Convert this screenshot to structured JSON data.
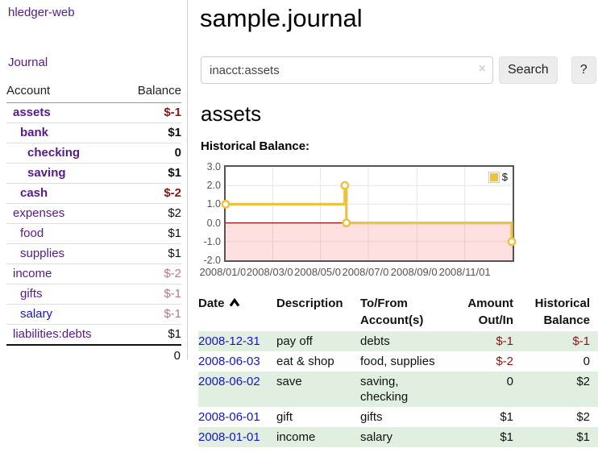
{
  "app": {
    "title": "hledger-web",
    "journal_link": "Journal"
  },
  "colors": {
    "link_purple": "#551a8b",
    "link_blue": "#1414cc",
    "negative_strong": "#8b1414",
    "negative_soft": "#b87878",
    "row_stripe_green": "#e1efe1",
    "series_gold": "#edc240"
  },
  "sidebar": {
    "headers": {
      "account": "Account",
      "balance": "Balance"
    },
    "accounts": [
      {
        "name": "assets",
        "indent": 1,
        "bold": true,
        "balance": "$-1",
        "style": "neg-strong"
      },
      {
        "name": "bank",
        "indent": 2,
        "bold": true,
        "balance": "$1",
        "style": "pos-strong"
      },
      {
        "name": "checking",
        "indent": 3,
        "bold": true,
        "balance": "0",
        "style": "pos-strong"
      },
      {
        "name": "saving",
        "indent": 3,
        "bold": true,
        "balance": "$1",
        "style": "pos-strong"
      },
      {
        "name": "cash",
        "indent": 2,
        "bold": true,
        "balance": "$-2",
        "style": "neg-strong"
      },
      {
        "name": "expenses",
        "indent": 1,
        "bold": false,
        "balance": "$2",
        "style": "pos"
      },
      {
        "name": "food",
        "indent": 2,
        "bold": false,
        "balance": "$1",
        "style": "pos"
      },
      {
        "name": "supplies",
        "indent": 2,
        "bold": false,
        "balance": "$1",
        "style": "pos"
      },
      {
        "name": "income",
        "indent": 1,
        "bold": false,
        "balance": "$-2",
        "style": "neg-soft"
      },
      {
        "name": "gifts",
        "indent": 2,
        "bold": false,
        "balance": "$-1",
        "style": "neg-soft"
      },
      {
        "name": "salary",
        "indent": 2,
        "bold": false,
        "balance": "$-1",
        "style": "neg-soft",
        "link_color": "blue"
      },
      {
        "name": "liabilities:debts",
        "indent": 1,
        "bold": false,
        "balance": "$1",
        "style": "pos"
      }
    ],
    "total": "0"
  },
  "header": {
    "title": "sample.journal"
  },
  "search": {
    "value": "inacct:assets",
    "clear_icon": "×",
    "button_label": "Search",
    "help_label": "?"
  },
  "account_page": {
    "heading": "assets",
    "chart_label": "Historical Balance:"
  },
  "chart_data": {
    "type": "line",
    "step": true,
    "title": "Historical Balance:",
    "xlabel": "",
    "ylabel": "",
    "xlim": [
      "2008-01-01",
      "2009-01-01"
    ],
    "ylim": [
      -2,
      3
    ],
    "y_tick_labels": [
      "3.0",
      "2.0",
      "1.0",
      "0.0",
      "-1.0",
      "-2.0"
    ],
    "x_tick_labels": [
      "2008/01/01",
      "2008/03/01",
      "2008/05/01",
      "2008/07/01",
      "2008/09/01",
      "2008/11/01"
    ],
    "grid": true,
    "grid_color": "#e6e6e6",
    "zero_line_color": "#9a1010",
    "negative_region_color": "rgba(255,0,0,0.12)",
    "legend_position": "top-right",
    "series": [
      {
        "name": "$",
        "color": "#edc240",
        "points": [
          {
            "date": "2008-01-01",
            "value": 1
          },
          {
            "date": "2008-06-01",
            "value": 2
          },
          {
            "date": "2008-06-03",
            "value": 0
          },
          {
            "date": "2008-12-31",
            "value": -1
          }
        ]
      }
    ]
  },
  "register": {
    "columns": {
      "date": "Date",
      "description": "Description",
      "tofrom": [
        "To/From",
        "Account(s)"
      ],
      "amount": [
        "Amount",
        "Out/In"
      ],
      "balance": [
        "Historical",
        "Balance"
      ]
    },
    "rows": [
      {
        "date": "2008-12-31",
        "description": "pay off",
        "accounts": "debts",
        "amount": "$-1",
        "amount_neg": true,
        "balance": "$-1",
        "balance_neg": true
      },
      {
        "date": "2008-06-03",
        "description": "eat & shop",
        "accounts": "food, supplies",
        "amount": "$-2",
        "amount_neg": true,
        "balance": "0",
        "balance_neg": false
      },
      {
        "date": "2008-06-02",
        "description": "save",
        "accounts": "saving, checking",
        "amount": "0",
        "amount_neg": false,
        "balance": "$2",
        "balance_neg": false
      },
      {
        "date": "2008-06-01",
        "description": "gift",
        "accounts": "gifts",
        "amount": "$1",
        "amount_neg": false,
        "balance": "$2",
        "balance_neg": false
      },
      {
        "date": "2008-01-01",
        "description": "income",
        "accounts": "salary",
        "amount": "$1",
        "amount_neg": false,
        "balance": "$1",
        "balance_neg": false
      }
    ]
  }
}
